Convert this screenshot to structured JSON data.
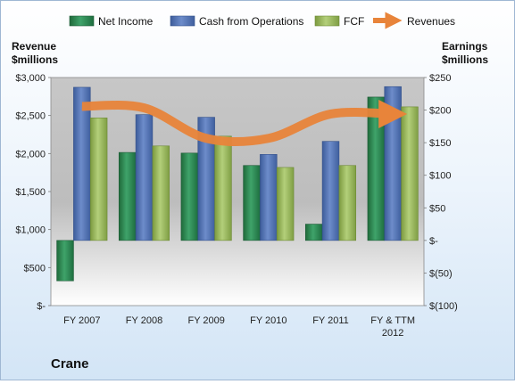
{
  "chart_data": {
    "type": "bar",
    "company": "Crane",
    "categories": [
      "FY 2007",
      "FY 2008",
      "FY 2009",
      "FY 2010",
      "FY 2011",
      "FY & TTM 2012"
    ],
    "left_axis": {
      "title_line1": "Revenue",
      "title_line2": "$millions",
      "ylim": [
        0,
        3000
      ],
      "ticks": [
        0,
        500,
        1000,
        1500,
        2000,
        2500,
        3000
      ],
      "tick_labels": [
        "$-",
        "$500",
        "$1,000",
        "$1,500",
        "$2,000",
        "$2,500",
        "$3,000"
      ]
    },
    "right_axis": {
      "title_line1": "Earnings",
      "title_line2": "$millions",
      "ylim": [
        -100,
        250
      ],
      "ticks": [
        -100,
        -50,
        0,
        50,
        100,
        150,
        200,
        250
      ],
      "tick_labels": [
        "$(100)",
        "$(50)",
        "$-",
        "$50",
        "$100",
        "$150",
        "$200",
        "$250"
      ]
    },
    "series": [
      {
        "name": "Net Income",
        "axis": "right",
        "kind": "bar",
        "color": "#2e8b57",
        "values": [
          -62,
          135,
          134,
          115,
          25,
          220
        ]
      },
      {
        "name": "Cash from Operations",
        "axis": "right",
        "kind": "bar",
        "color": "#4f6fb0",
        "values": [
          235,
          193,
          189,
          132,
          152,
          236
        ]
      },
      {
        "name": "FCF",
        "axis": "right",
        "kind": "bar",
        "color": "#9bbb59",
        "values": [
          188,
          145,
          160,
          112,
          115,
          205
        ]
      },
      {
        "name": "Revenues",
        "axis": "left",
        "kind": "line",
        "color": "#e8843a",
        "values": [
          2620,
          2600,
          2200,
          2200,
          2520,
          2520
        ]
      }
    ],
    "legend_position": "top",
    "grid": false
  },
  "colors": {
    "plot_top": "#c4c4c4",
    "plot_bottom": "#ffffff",
    "axis_text": "#222222",
    "title_text": "#111111"
  }
}
